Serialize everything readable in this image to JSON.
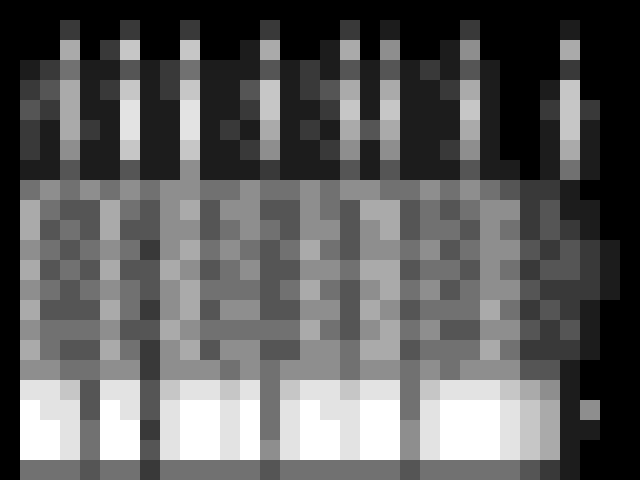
{
  "chart_data": {
    "type": "heatmap",
    "xlim": [
      0,
      32
    ],
    "ylim": [
      0,
      24
    ],
    "tick_labels": false,
    "color": "#ffffff",
    "zlim": [
      0,
      9
    ],
    "cells": [
      [
        0,
        0,
        0,
        0,
        0,
        0,
        0,
        0,
        0,
        0,
        0,
        0,
        0,
        0,
        0,
        0,
        0,
        0,
        0,
        0,
        0,
        0,
        0,
        0,
        0,
        0,
        0,
        0,
        0,
        0,
        0,
        0
      ],
      [
        0,
        0,
        0,
        2,
        0,
        0,
        2,
        0,
        0,
        2,
        0,
        0,
        0,
        2,
        0,
        0,
        0,
        2,
        0,
        1,
        0,
        0,
        0,
        2,
        0,
        0,
        0,
        0,
        1,
        0,
        0,
        0
      ],
      [
        0,
        0,
        0,
        6,
        0,
        2,
        7,
        0,
        0,
        7,
        0,
        0,
        1,
        6,
        0,
        0,
        1,
        6,
        0,
        5,
        0,
        0,
        1,
        5,
        0,
        0,
        0,
        0,
        6,
        0,
        0,
        0
      ],
      [
        0,
        1,
        2,
        4,
        1,
        1,
        3,
        1,
        2,
        4,
        1,
        1,
        1,
        3,
        1,
        2,
        1,
        3,
        1,
        3,
        1,
        2,
        1,
        3,
        1,
        0,
        0,
        0,
        2,
        0,
        0,
        0
      ],
      [
        0,
        2,
        3,
        6,
        1,
        2,
        7,
        1,
        2,
        7,
        1,
        1,
        3,
        7,
        1,
        2,
        3,
        6,
        1,
        6,
        1,
        1,
        2,
        6,
        1,
        0,
        0,
        1,
        7,
        0,
        0,
        0
      ],
      [
        0,
        3,
        2,
        6,
        1,
        1,
        8,
        1,
        1,
        8,
        1,
        1,
        2,
        7,
        1,
        1,
        2,
        7,
        1,
        7,
        1,
        1,
        1,
        7,
        1,
        0,
        0,
        2,
        7,
        2,
        0,
        0
      ],
      [
        0,
        2,
        1,
        6,
        2,
        1,
        8,
        1,
        1,
        8,
        1,
        2,
        1,
        6,
        1,
        2,
        1,
        6,
        3,
        6,
        1,
        1,
        1,
        6,
        1,
        0,
        0,
        1,
        7,
        1,
        0,
        0
      ],
      [
        0,
        2,
        1,
        5,
        1,
        1,
        7,
        1,
        1,
        7,
        1,
        1,
        2,
        5,
        1,
        1,
        2,
        5,
        1,
        5,
        1,
        1,
        2,
        5,
        1,
        0,
        0,
        1,
        6,
        1,
        0,
        0
      ],
      [
        0,
        1,
        1,
        3,
        1,
        1,
        3,
        1,
        1,
        5,
        1,
        1,
        1,
        2,
        1,
        1,
        1,
        3,
        1,
        3,
        1,
        1,
        1,
        3,
        1,
        1,
        0,
        1,
        4,
        1,
        0,
        0
      ],
      [
        0,
        4,
        5,
        4,
        5,
        4,
        5,
        4,
        5,
        5,
        4,
        4,
        5,
        4,
        4,
        5,
        4,
        5,
        5,
        4,
        4,
        5,
        4,
        5,
        4,
        3,
        2,
        2,
        1,
        0,
        0,
        0
      ],
      [
        0,
        6,
        4,
        3,
        3,
        6,
        4,
        3,
        5,
        6,
        3,
        5,
        5,
        3,
        3,
        5,
        4,
        3,
        6,
        6,
        3,
        4,
        3,
        4,
        5,
        5,
        2,
        3,
        1,
        1,
        0,
        0
      ],
      [
        0,
        6,
        3,
        4,
        3,
        6,
        3,
        3,
        5,
        5,
        3,
        4,
        5,
        4,
        3,
        5,
        5,
        3,
        5,
        6,
        3,
        4,
        4,
        3,
        5,
        4,
        2,
        3,
        2,
        1,
        0,
        0
      ],
      [
        0,
        5,
        4,
        3,
        4,
        5,
        4,
        2,
        5,
        6,
        4,
        5,
        4,
        3,
        4,
        6,
        4,
        3,
        5,
        5,
        4,
        5,
        3,
        4,
        5,
        5,
        3,
        2,
        3,
        2,
        1,
        0
      ],
      [
        0,
        6,
        3,
        4,
        3,
        6,
        3,
        3,
        6,
        5,
        3,
        4,
        5,
        3,
        3,
        5,
        5,
        4,
        6,
        6,
        3,
        4,
        4,
        3,
        5,
        4,
        2,
        3,
        3,
        2,
        1,
        0
      ],
      [
        0,
        5,
        4,
        3,
        4,
        5,
        4,
        3,
        5,
        6,
        4,
        4,
        4,
        3,
        4,
        6,
        4,
        3,
        5,
        6,
        4,
        5,
        3,
        4,
        5,
        5,
        3,
        2,
        2,
        2,
        1,
        0
      ],
      [
        0,
        6,
        3,
        3,
        3,
        6,
        4,
        2,
        5,
        6,
        3,
        5,
        5,
        3,
        3,
        5,
        5,
        3,
        6,
        5,
        3,
        4,
        4,
        4,
        6,
        4,
        2,
        3,
        2,
        1,
        0,
        0
      ],
      [
        0,
        5,
        4,
        4,
        4,
        5,
        3,
        3,
        6,
        5,
        4,
        4,
        4,
        4,
        4,
        6,
        4,
        3,
        5,
        6,
        4,
        5,
        3,
        3,
        5,
        5,
        3,
        2,
        3,
        1,
        0,
        0
      ],
      [
        0,
        6,
        4,
        3,
        3,
        6,
        4,
        2,
        5,
        6,
        3,
        5,
        5,
        3,
        3,
        5,
        5,
        4,
        6,
        6,
        3,
        4,
        4,
        4,
        6,
        4,
        2,
        2,
        2,
        1,
        0,
        0
      ],
      [
        0,
        5,
        5,
        4,
        4,
        5,
        5,
        2,
        5,
        5,
        5,
        4,
        5,
        4,
        5,
        5,
        5,
        4,
        5,
        5,
        4,
        5,
        4,
        5,
        5,
        5,
        3,
        3,
        1,
        0,
        0,
        0
      ],
      [
        0,
        8,
        8,
        7,
        3,
        8,
        8,
        3,
        7,
        8,
        8,
        7,
        8,
        4,
        7,
        8,
        8,
        7,
        8,
        8,
        4,
        7,
        8,
        8,
        8,
        7,
        6,
        5,
        1,
        0,
        0,
        0
      ],
      [
        0,
        9,
        8,
        8,
        3,
        9,
        8,
        3,
        8,
        9,
        9,
        8,
        9,
        4,
        8,
        9,
        8,
        8,
        9,
        9,
        4,
        8,
        9,
        9,
        9,
        8,
        7,
        6,
        1,
        5,
        0,
        0
      ],
      [
        0,
        9,
        9,
        8,
        4,
        9,
        9,
        2,
        8,
        9,
        9,
        8,
        9,
        4,
        8,
        9,
        9,
        8,
        9,
        9,
        5,
        8,
        9,
        9,
        9,
        8,
        7,
        6,
        1,
        1,
        0,
        0
      ],
      [
        0,
        9,
        9,
        8,
        4,
        9,
        9,
        3,
        8,
        9,
        9,
        8,
        9,
        5,
        8,
        9,
        9,
        8,
        9,
        9,
        5,
        8,
        9,
        9,
        9,
        8,
        7,
        6,
        1,
        0,
        0,
        0
      ],
      [
        0,
        4,
        4,
        4,
        3,
        4,
        4,
        2,
        4,
        4,
        4,
        4,
        4,
        3,
        4,
        4,
        4,
        4,
        4,
        4,
        3,
        4,
        4,
        4,
        4,
        4,
        3,
        2,
        1,
        0,
        0,
        0
      ]
    ]
  }
}
